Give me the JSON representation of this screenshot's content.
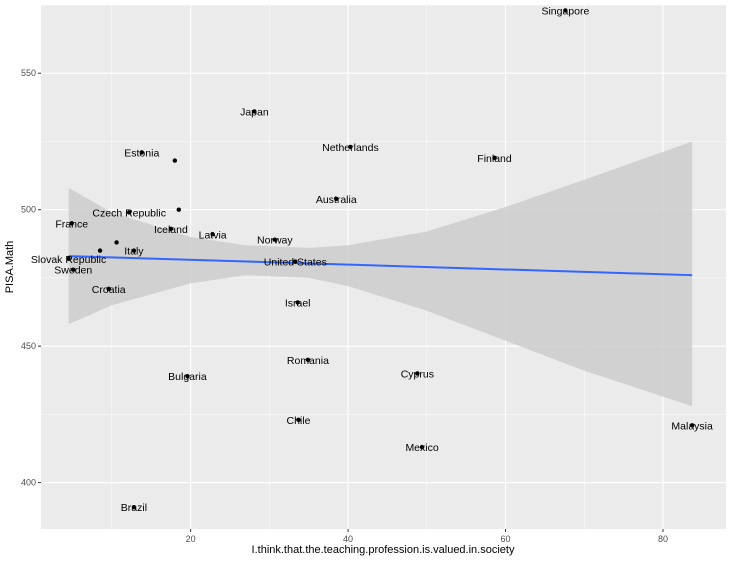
{
  "chart_data": {
    "type": "scatter",
    "title": "",
    "xlabel": "I.think.that.the.teaching.profession.is.valued.in.society",
    "ylabel": "PISA.Math",
    "xlim": [
      1,
      88
    ],
    "ylim": [
      383,
      575
    ],
    "x_ticks": [
      20,
      40,
      60,
      80
    ],
    "y_ticks": [
      400,
      450,
      500,
      550
    ],
    "grid": true,
    "colors": {
      "panel": "#ebebeb",
      "grid_major": "#ffffff",
      "point": "#000000",
      "fit_line": "#3366ff",
      "ribbon": "#cccccc"
    },
    "points": [
      {
        "label": "Singapore",
        "x": 67.6,
        "y": 573
      },
      {
        "label": "Japan",
        "x": 28.1,
        "y": 536
      },
      {
        "label": "Netherlands",
        "x": 40.3,
        "y": 523
      },
      {
        "label": "Estonia",
        "x": 13.8,
        "y": 521
      },
      {
        "label": "Finland",
        "x": 58.6,
        "y": 519
      },
      {
        "label": "",
        "x": 18.0,
        "y": 518
      },
      {
        "label": "Australia",
        "x": 38.5,
        "y": 504
      },
      {
        "label": "",
        "x": 18.5,
        "y": 500
      },
      {
        "label": "Czech Republic",
        "x": 12.2,
        "y": 499
      },
      {
        "label": "France",
        "x": 4.9,
        "y": 495
      },
      {
        "label": "Iceland",
        "x": 17.5,
        "y": 493
      },
      {
        "label": "Latvia",
        "x": 22.8,
        "y": 491
      },
      {
        "label": "Norway",
        "x": 30.7,
        "y": 489
      },
      {
        "label": "",
        "x": 10.6,
        "y": 488
      },
      {
        "label": "Italy",
        "x": 12.8,
        "y": 485
      },
      {
        "label": "",
        "x": 8.5,
        "y": 485
      },
      {
        "label": "Slovak Republic",
        "x": 4.5,
        "y": 482
      },
      {
        "label": "United States",
        "x": 33.3,
        "y": 481
      },
      {
        "label": "Sweden",
        "x": 5.1,
        "y": 478
      },
      {
        "label": "Croatia",
        "x": 9.6,
        "y": 471
      },
      {
        "label": "Israel",
        "x": 33.6,
        "y": 466
      },
      {
        "label": "Romania",
        "x": 34.9,
        "y": 445
      },
      {
        "label": "Cyprus",
        "x": 48.8,
        "y": 440
      },
      {
        "label": "Bulgaria",
        "x": 19.6,
        "y": 439
      },
      {
        "label": "Chile",
        "x": 33.7,
        "y": 423
      },
      {
        "label": "Malaysia",
        "x": 83.7,
        "y": 421
      },
      {
        "label": "Mexico",
        "x": 49.4,
        "y": 413
      },
      {
        "label": "Brazil",
        "x": 12.8,
        "y": 391
      }
    ],
    "fit_line": {
      "x": [
        4.5,
        83.7
      ],
      "y": [
        483,
        476
      ]
    },
    "confidence_band": {
      "x": [
        4.5,
        10,
        20,
        27,
        35,
        40,
        50,
        60,
        70,
        83.7
      ],
      "upper": [
        508,
        499,
        490,
        487,
        486,
        487,
        492,
        501,
        511,
        525
      ],
      "lower": [
        458,
        465,
        473,
        476,
        475,
        472,
        463,
        452,
        441,
        428
      ]
    }
  }
}
